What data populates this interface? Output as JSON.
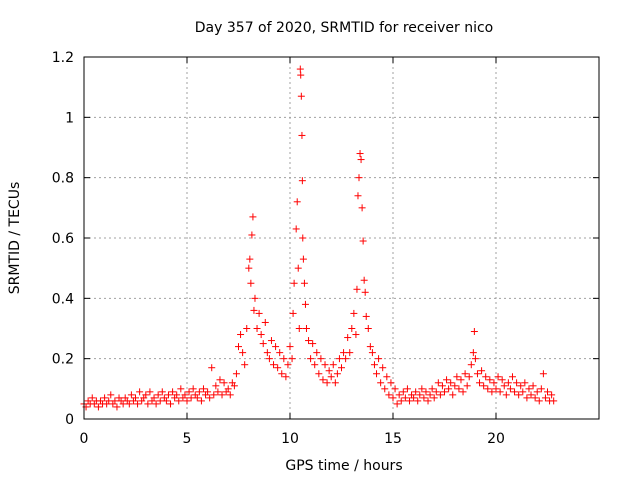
{
  "chart_data": {
    "type": "scatter",
    "title": "Day 357 of 2020, SRMTID for receiver nico",
    "xlabel": "GPS time / hours",
    "ylabel": "SRMTID / TECUs",
    "xlim": [
      0,
      25
    ],
    "ylim": [
      0,
      1.2
    ],
    "xticks": [
      0,
      5,
      10,
      15,
      20
    ],
    "xtick_labels": [
      "0",
      "5",
      "10",
      "15",
      "20"
    ],
    "yticks": [
      0,
      0.2,
      0.4,
      0.6,
      0.8,
      1.0,
      1.2
    ],
    "ytick_labels": [
      "0",
      "0.2",
      "0.4",
      "0.6",
      "0.8",
      "1",
      "1.2"
    ],
    "grid": true,
    "marker": "+",
    "color": "#ff0000",
    "series": [
      {
        "name": "SRMTID",
        "points": [
          [
            0.0,
            0.05
          ],
          [
            0.1,
            0.04
          ],
          [
            0.2,
            0.06
          ],
          [
            0.3,
            0.05
          ],
          [
            0.4,
            0.07
          ],
          [
            0.5,
            0.05
          ],
          [
            0.6,
            0.06
          ],
          [
            0.7,
            0.04
          ],
          [
            0.8,
            0.06
          ],
          [
            0.9,
            0.05
          ],
          [
            1.0,
            0.07
          ],
          [
            1.1,
            0.05
          ],
          [
            1.2,
            0.06
          ],
          [
            1.3,
            0.08
          ],
          [
            1.4,
            0.05
          ],
          [
            1.5,
            0.06
          ],
          [
            1.6,
            0.04
          ],
          [
            1.7,
            0.07
          ],
          [
            1.8,
            0.06
          ],
          [
            1.9,
            0.05
          ],
          [
            2.0,
            0.07
          ],
          [
            2.1,
            0.06
          ],
          [
            2.2,
            0.05
          ],
          [
            2.3,
            0.08
          ],
          [
            2.4,
            0.06
          ],
          [
            2.5,
            0.07
          ],
          [
            2.6,
            0.05
          ],
          [
            2.7,
            0.09
          ],
          [
            2.8,
            0.06
          ],
          [
            2.9,
            0.07
          ],
          [
            3.0,
            0.08
          ],
          [
            3.1,
            0.05
          ],
          [
            3.2,
            0.09
          ],
          [
            3.3,
            0.06
          ],
          [
            3.4,
            0.07
          ],
          [
            3.5,
            0.05
          ],
          [
            3.6,
            0.08
          ],
          [
            3.7,
            0.06
          ],
          [
            3.8,
            0.09
          ],
          [
            3.9,
            0.07
          ],
          [
            4.0,
            0.06
          ],
          [
            4.1,
            0.08
          ],
          [
            4.2,
            0.05
          ],
          [
            4.3,
            0.09
          ],
          [
            4.4,
            0.07
          ],
          [
            4.5,
            0.08
          ],
          [
            4.6,
            0.06
          ],
          [
            4.7,
            0.1
          ],
          [
            4.8,
            0.07
          ],
          [
            4.9,
            0.08
          ],
          [
            5.0,
            0.06
          ],
          [
            5.1,
            0.09
          ],
          [
            5.2,
            0.07
          ],
          [
            5.3,
            0.1
          ],
          [
            5.4,
            0.08
          ],
          [
            5.5,
            0.07
          ],
          [
            5.6,
            0.09
          ],
          [
            5.7,
            0.06
          ],
          [
            5.8,
            0.1
          ],
          [
            5.9,
            0.08
          ],
          [
            6.0,
            0.09
          ],
          [
            6.1,
            0.07
          ],
          [
            6.2,
            0.17
          ],
          [
            6.3,
            0.08
          ],
          [
            6.4,
            0.11
          ],
          [
            6.5,
            0.09
          ],
          [
            6.6,
            0.13
          ],
          [
            6.7,
            0.08
          ],
          [
            6.8,
            0.12
          ],
          [
            6.9,
            0.09
          ],
          [
            7.0,
            0.1
          ],
          [
            7.1,
            0.08
          ],
          [
            7.2,
            0.12
          ],
          [
            7.3,
            0.11
          ],
          [
            7.4,
            0.15
          ],
          [
            7.5,
            0.24
          ],
          [
            7.6,
            0.28
          ],
          [
            7.7,
            0.22
          ],
          [
            7.8,
            0.18
          ],
          [
            7.9,
            0.3
          ],
          [
            8.0,
            0.5
          ],
          [
            8.05,
            0.53
          ],
          [
            8.1,
            0.45
          ],
          [
            8.15,
            0.61
          ],
          [
            8.2,
            0.67
          ],
          [
            8.25,
            0.36
          ],
          [
            8.3,
            0.4
          ],
          [
            8.4,
            0.3
          ],
          [
            8.5,
            0.35
          ],
          [
            8.6,
            0.28
          ],
          [
            8.7,
            0.25
          ],
          [
            8.8,
            0.32
          ],
          [
            8.9,
            0.22
          ],
          [
            9.0,
            0.2
          ],
          [
            9.1,
            0.26
          ],
          [
            9.2,
            0.18
          ],
          [
            9.3,
            0.24
          ],
          [
            9.4,
            0.17
          ],
          [
            9.5,
            0.22
          ],
          [
            9.6,
            0.15
          ],
          [
            9.7,
            0.2
          ],
          [
            9.8,
            0.14
          ],
          [
            9.9,
            0.18
          ],
          [
            10.0,
            0.24
          ],
          [
            10.1,
            0.2
          ],
          [
            10.15,
            0.35
          ],
          [
            10.2,
            0.45
          ],
          [
            10.3,
            0.63
          ],
          [
            10.35,
            0.72
          ],
          [
            10.4,
            0.5
          ],
          [
            10.45,
            0.3
          ],
          [
            10.5,
            1.16
          ],
          [
            10.52,
            1.14
          ],
          [
            10.55,
            1.07
          ],
          [
            10.58,
            0.94
          ],
          [
            10.6,
            0.79
          ],
          [
            10.62,
            0.6
          ],
          [
            10.65,
            0.53
          ],
          [
            10.7,
            0.45
          ],
          [
            10.75,
            0.38
          ],
          [
            10.8,
            0.3
          ],
          [
            10.9,
            0.26
          ],
          [
            11.0,
            0.2
          ],
          [
            11.1,
            0.25
          ],
          [
            11.2,
            0.18
          ],
          [
            11.3,
            0.22
          ],
          [
            11.4,
            0.15
          ],
          [
            11.5,
            0.2
          ],
          [
            11.6,
            0.13
          ],
          [
            11.7,
            0.18
          ],
          [
            11.8,
            0.12
          ],
          [
            11.9,
            0.16
          ],
          [
            12.0,
            0.14
          ],
          [
            12.1,
            0.18
          ],
          [
            12.2,
            0.12
          ],
          [
            12.3,
            0.15
          ],
          [
            12.4,
            0.2
          ],
          [
            12.5,
            0.17
          ],
          [
            12.6,
            0.22
          ],
          [
            12.7,
            0.2
          ],
          [
            12.8,
            0.27
          ],
          [
            12.9,
            0.22
          ],
          [
            13.0,
            0.3
          ],
          [
            13.1,
            0.35
          ],
          [
            13.2,
            0.28
          ],
          [
            13.25,
            0.43
          ],
          [
            13.3,
            0.74
          ],
          [
            13.35,
            0.8
          ],
          [
            13.4,
            0.88
          ],
          [
            13.45,
            0.86
          ],
          [
            13.5,
            0.7
          ],
          [
            13.55,
            0.59
          ],
          [
            13.6,
            0.46
          ],
          [
            13.65,
            0.42
          ],
          [
            13.7,
            0.34
          ],
          [
            13.8,
            0.3
          ],
          [
            13.9,
            0.24
          ],
          [
            14.0,
            0.22
          ],
          [
            14.1,
            0.18
          ],
          [
            14.2,
            0.15
          ],
          [
            14.3,
            0.2
          ],
          [
            14.4,
            0.12
          ],
          [
            14.5,
            0.17
          ],
          [
            14.6,
            0.1
          ],
          [
            14.7,
            0.14
          ],
          [
            14.8,
            0.08
          ],
          [
            14.9,
            0.12
          ],
          [
            15.0,
            0.07
          ],
          [
            15.1,
            0.1
          ],
          [
            15.2,
            0.05
          ],
          [
            15.3,
            0.08
          ],
          [
            15.4,
            0.06
          ],
          [
            15.5,
            0.09
          ],
          [
            15.6,
            0.07
          ],
          [
            15.7,
            0.1
          ],
          [
            15.8,
            0.06
          ],
          [
            15.9,
            0.08
          ],
          [
            16.0,
            0.07
          ],
          [
            16.1,
            0.09
          ],
          [
            16.2,
            0.06
          ],
          [
            16.3,
            0.08
          ],
          [
            16.4,
            0.1
          ],
          [
            16.5,
            0.07
          ],
          [
            16.6,
            0.09
          ],
          [
            16.7,
            0.06
          ],
          [
            16.8,
            0.08
          ],
          [
            16.9,
            0.1
          ],
          [
            17.0,
            0.07
          ],
          [
            17.1,
            0.09
          ],
          [
            17.2,
            0.12
          ],
          [
            17.3,
            0.08
          ],
          [
            17.4,
            0.11
          ],
          [
            17.5,
            0.09
          ],
          [
            17.6,
            0.13
          ],
          [
            17.7,
            0.1
          ],
          [
            17.8,
            0.12
          ],
          [
            17.9,
            0.08
          ],
          [
            18.0,
            0.11
          ],
          [
            18.1,
            0.14
          ],
          [
            18.2,
            0.1
          ],
          [
            18.3,
            0.13
          ],
          [
            18.4,
            0.09
          ],
          [
            18.5,
            0.15
          ],
          [
            18.6,
            0.11
          ],
          [
            18.7,
            0.14
          ],
          [
            18.8,
            0.18
          ],
          [
            18.9,
            0.22
          ],
          [
            18.95,
            0.29
          ],
          [
            19.0,
            0.2
          ],
          [
            19.1,
            0.15
          ],
          [
            19.2,
            0.12
          ],
          [
            19.3,
            0.16
          ],
          [
            19.4,
            0.11
          ],
          [
            19.5,
            0.14
          ],
          [
            19.6,
            0.1
          ],
          [
            19.7,
            0.13
          ],
          [
            19.8,
            0.09
          ],
          [
            19.9,
            0.12
          ],
          [
            20.0,
            0.1
          ],
          [
            20.1,
            0.14
          ],
          [
            20.2,
            0.09
          ],
          [
            20.3,
            0.13
          ],
          [
            20.4,
            0.11
          ],
          [
            20.5,
            0.08
          ],
          [
            20.6,
            0.12
          ],
          [
            20.7,
            0.1
          ],
          [
            20.8,
            0.14
          ],
          [
            20.9,
            0.09
          ],
          [
            21.0,
            0.12
          ],
          [
            21.1,
            0.08
          ],
          [
            21.2,
            0.11
          ],
          [
            21.3,
            0.09
          ],
          [
            21.4,
            0.12
          ],
          [
            21.5,
            0.07
          ],
          [
            21.6,
            0.1
          ],
          [
            21.7,
            0.08
          ],
          [
            21.8,
            0.11
          ],
          [
            21.9,
            0.07
          ],
          [
            22.0,
            0.09
          ],
          [
            22.1,
            0.06
          ],
          [
            22.2,
            0.1
          ],
          [
            22.3,
            0.15
          ],
          [
            22.4,
            0.07
          ],
          [
            22.5,
            0.09
          ],
          [
            22.6,
            0.06
          ],
          [
            22.7,
            0.08
          ],
          [
            22.8,
            0.06
          ]
        ]
      }
    ]
  }
}
